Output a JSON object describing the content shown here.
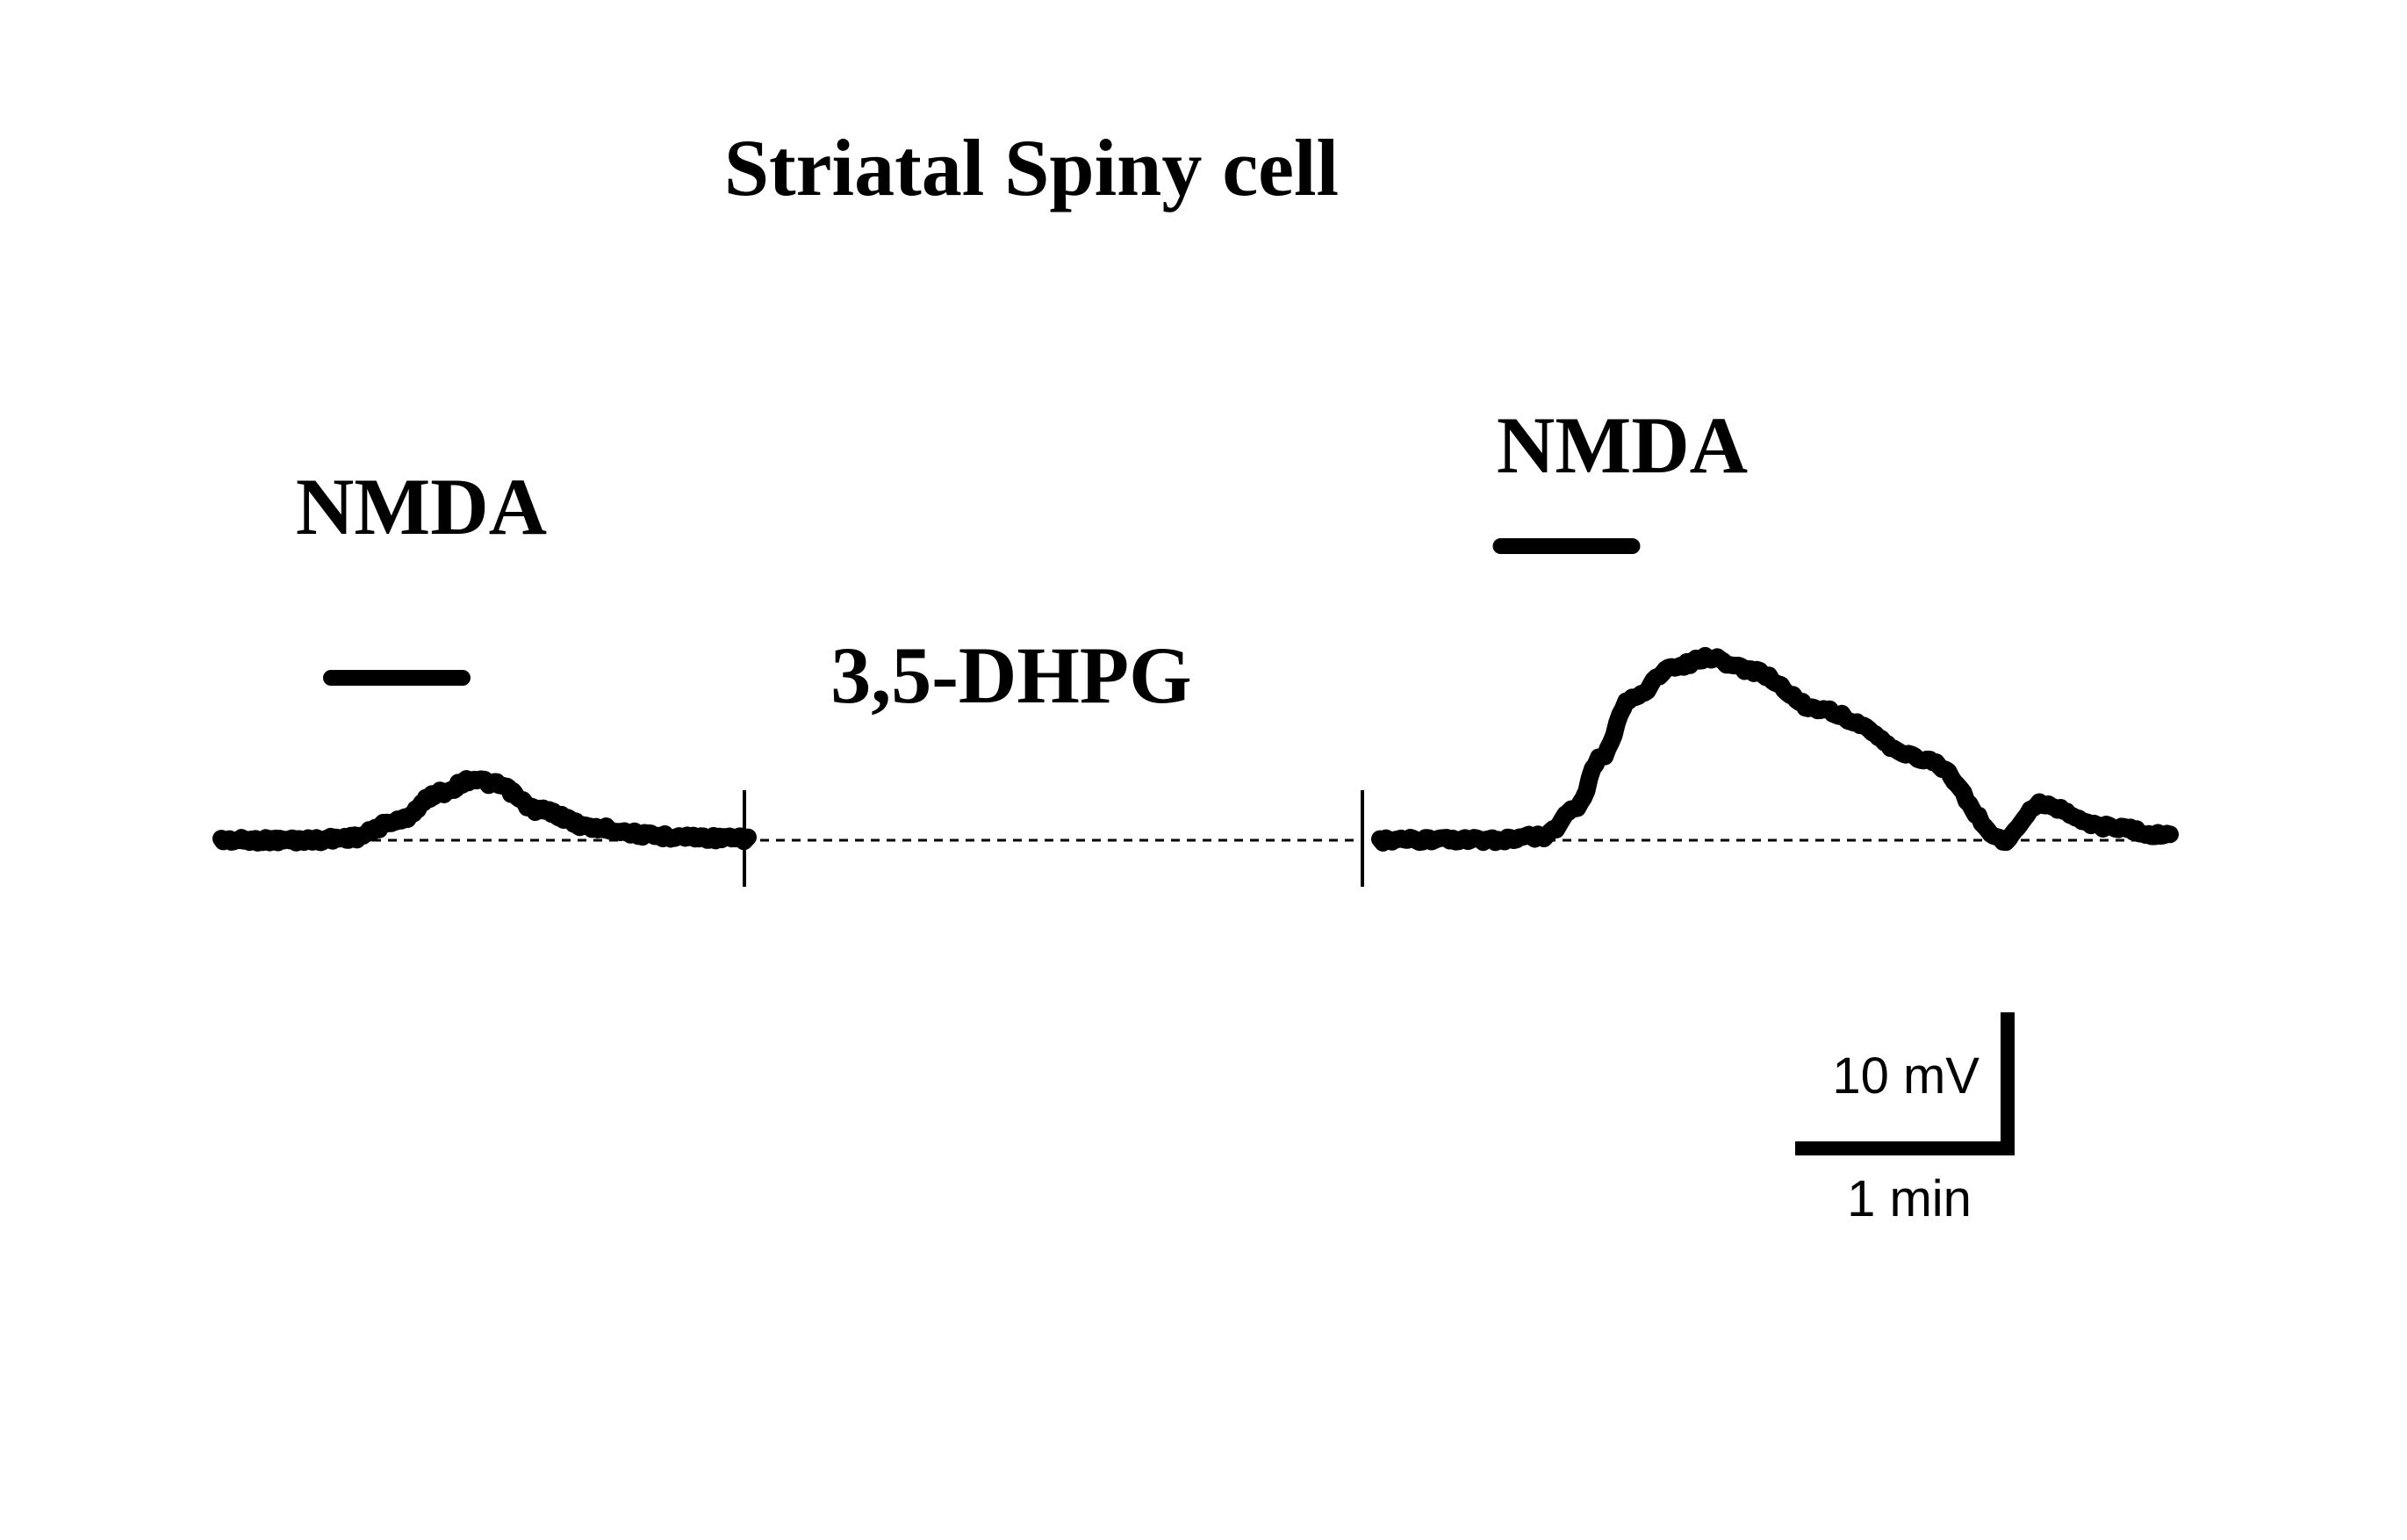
{
  "chart_data": {
    "type": "line",
    "title": "Striatal Spiny cell",
    "units": {
      "x": "min",
      "y": "mV"
    },
    "series": [
      {
        "label": "NMDA",
        "application_bar": {
          "start_min": 0.5,
          "end_min": 1.1
        },
        "points": [
          [
            0.0,
            0.0
          ],
          [
            0.4,
            0.0
          ],
          [
            0.6,
            0.2
          ],
          [
            0.8,
            1.4
          ],
          [
            1.0,
            3.5
          ],
          [
            1.15,
            4.5
          ],
          [
            1.25,
            4.1
          ],
          [
            1.45,
            2.2
          ],
          [
            1.7,
            0.9
          ],
          [
            2.0,
            0.3
          ],
          [
            2.4,
            0.1
          ],
          [
            2.4,
            0.0
          ]
        ]
      },
      {
        "label": "NMDA",
        "condition": "3,5-DHPG",
        "application_bar": {
          "start_min": 0.55,
          "end_min": 1.15
        },
        "points": [
          [
            0.0,
            0.0
          ],
          [
            0.5,
            0.0
          ],
          [
            0.75,
            0.3
          ],
          [
            0.9,
            2.5
          ],
          [
            1.0,
            6.0
          ],
          [
            1.15,
            10.5
          ],
          [
            1.35,
            12.8
          ],
          [
            1.5,
            13.4
          ],
          [
            1.7,
            12.4
          ],
          [
            2.0,
            9.6
          ],
          [
            2.5,
            5.9
          ],
          [
            3.0,
            2.7
          ],
          [
            3.3,
            1.0
          ],
          [
            3.6,
            0.3
          ],
          [
            2.85,
            0.0
          ]
        ]
      }
    ],
    "scale_bar": {
      "y_value": 10,
      "y_label": "10 mV",
      "x_value": 1,
      "x_label": "1 min"
    },
    "baseline": "dashed"
  }
}
